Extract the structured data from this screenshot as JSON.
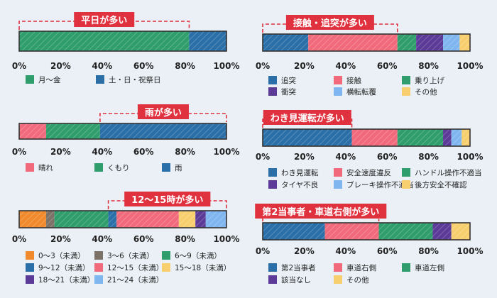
{
  "colors": {
    "teal": "#2f9e6c",
    "blue": "#2a6fa8",
    "pink": "#f16a7c",
    "purple": "#5b3a98",
    "lightblue": "#7fb6ef",
    "yellow": "#f7cf6e",
    "orange": "#f08a2c",
    "brown": "#7d7267",
    "callout_bg": "#e0313e",
    "callout_border": "#e0313e",
    "frame": "#333333"
  },
  "chart_data": [
    {
      "type": "bar",
      "orientation": "horizontal-stacked",
      "title": "平日が多い",
      "xlim": [
        0,
        100
      ],
      "ticks": [
        "0%",
        "20%",
        "40%",
        "60%",
        "80%",
        "100%"
      ],
      "callout_range": [
        0,
        82
      ],
      "series": [
        {
          "name": "月〜金",
          "value": 82,
          "color": "#2f9e6c"
        },
        {
          "name": "土・日・祝祭日",
          "value": 18,
          "color": "#2a6fa8"
        }
      ],
      "legend_columns": 2
    },
    {
      "type": "bar",
      "orientation": "horizontal-stacked",
      "title": "雨が多い",
      "xlim": [
        0,
        100
      ],
      "ticks": [
        "0%",
        "20%",
        "40%",
        "60%",
        "80%",
        "100%"
      ],
      "callout_range": [
        39,
        100
      ],
      "series": [
        {
          "name": "晴れ",
          "value": 13,
          "color": "#f16a7c"
        },
        {
          "name": "くもり",
          "value": 26,
          "color": "#2f9e6c"
        },
        {
          "name": "雨",
          "value": 61,
          "color": "#2a6fa8"
        }
      ],
      "legend_columns": 3
    },
    {
      "type": "bar",
      "orientation": "horizontal-stacked",
      "title": "12〜15時が多い",
      "xlim": [
        0,
        100
      ],
      "ticks": [
        "0%",
        "20%",
        "40%",
        "60%",
        "80%",
        "100%"
      ],
      "callout_range": [
        43,
        100
      ],
      "series": [
        {
          "name": "0〜3（未満）",
          "value": 13,
          "color": "#f08a2c"
        },
        {
          "name": "3〜6（未満）",
          "value": 4,
          "color": "#7d7267"
        },
        {
          "name": "6〜9（未満）",
          "value": 26,
          "color": "#2f9e6c"
        },
        {
          "name": "9〜12（未満）",
          "value": 4,
          "color": "#2a6fa8"
        },
        {
          "name": "12〜15（未満）",
          "value": 30,
          "color": "#f16a7c"
        },
        {
          "name": "15〜18（未満）",
          "value": 8,
          "color": "#f7cf6e"
        },
        {
          "name": "18〜21（未満）",
          "value": 5,
          "color": "#5b3a98"
        },
        {
          "name": "21〜24（未満）",
          "value": 10,
          "color": "#7fb6ef"
        }
      ],
      "legend_columns": 3
    },
    {
      "type": "bar",
      "orientation": "horizontal-stacked",
      "title": "接触・追突が多い",
      "xlim": [
        0,
        100
      ],
      "ticks": [
        "0%",
        "20%",
        "40%",
        "60%",
        "80%",
        "100%"
      ],
      "callout_range": [
        0,
        65
      ],
      "series": [
        {
          "name": "追突",
          "value": 22,
          "color": "#2a6fa8"
        },
        {
          "name": "接触",
          "value": 43,
          "color": "#f16a7c"
        },
        {
          "name": "乗り上げ",
          "value": 9,
          "color": "#2f9e6c"
        },
        {
          "name": "衝突",
          "value": 13,
          "color": "#5b3a98"
        },
        {
          "name": "横転転覆",
          "value": 8,
          "color": "#7fb6ef"
        },
        {
          "name": "その他",
          "value": 5,
          "color": "#f7cf6e"
        }
      ],
      "legend_columns": 3
    },
    {
      "type": "bar",
      "orientation": "horizontal-stacked",
      "title": "わき見運転が多い",
      "xlim": [
        0,
        100
      ],
      "ticks": [
        "0%",
        "20%",
        "40%",
        "60%",
        "80%",
        "100%"
      ],
      "callout_range": [
        0,
        43
      ],
      "series": [
        {
          "name": "わき見運転",
          "value": 43,
          "color": "#2a6fa8"
        },
        {
          "name": "安全速度違反",
          "value": 22,
          "color": "#f16a7c"
        },
        {
          "name": "ハンドル操作不適当",
          "value": 22,
          "color": "#2f9e6c"
        },
        {
          "name": "タイヤ不良",
          "value": 4,
          "color": "#5b3a98"
        },
        {
          "name": "ブレーキ操作不適当",
          "value": 5,
          "color": "#7fb6ef"
        },
        {
          "name": "後方安全不確認",
          "value": 4,
          "color": "#f7cf6e"
        }
      ],
      "legend_columns": 3
    },
    {
      "type": "bar",
      "orientation": "horizontal-stacked",
      "title": "第2当事者・車道右側が多い",
      "xlim": [
        0,
        100
      ],
      "ticks": [
        "0%",
        "20%",
        "40%",
        "60%",
        "80%",
        "100%"
      ],
      "callout_range": [
        0,
        56
      ],
      "series": [
        {
          "name": "第2当事者",
          "value": 30,
          "color": "#2a6fa8"
        },
        {
          "name": "車道右側",
          "value": 26,
          "color": "#f16a7c"
        },
        {
          "name": "車道左側",
          "value": 26,
          "color": "#2f9e6c"
        },
        {
          "name": "該当なし",
          "value": 9,
          "color": "#5b3a98"
        },
        {
          "name": "その他",
          "value": 9,
          "color": "#f7cf6e"
        }
      ],
      "legend_columns": 3
    }
  ]
}
